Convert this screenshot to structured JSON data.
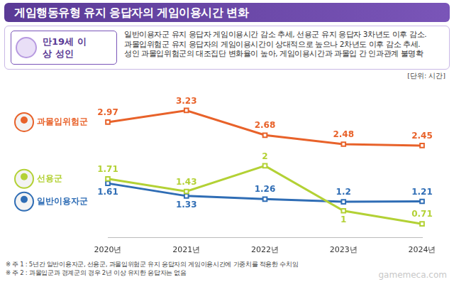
{
  "header": {
    "title": "게임행동유형 유지 응답자의 게임이용시간 변화"
  },
  "panel": {
    "label": "만19세 이상 성인",
    "lines": [
      "일반이용자군 유지 응답자 게임이용시간 감소 추세, 선용군 유지 응답자 3차년도 이후 감소.",
      "과몰입위험군 유지 응답자의 게임이용시간이 상대적으로 높으나 2차년도 이후 감소 추세.",
      "성인 과몰입위험군의 대조집단 변화율이 높아, 게임이용시간과 과몰입 간 인과관계 불명확"
    ]
  },
  "chart_data": {
    "type": "line",
    "unit": "[단위: 시간]",
    "categories": [
      "2020년",
      "2021년",
      "2022년",
      "2023년",
      "2024년"
    ],
    "series": [
      {
        "name": "과몰입위험군",
        "color": "#e8622a",
        "values": [
          2.97,
          3.23,
          2.68,
          2.48,
          2.45
        ]
      },
      {
        "name": "선용군",
        "color": "#b3d135",
        "values": [
          1.71,
          1.43,
          2.0,
          1.0,
          0.71
        ]
      },
      {
        "name": "일반이용자군",
        "color": "#2f6db5",
        "values": [
          1.61,
          1.33,
          1.26,
          1.2,
          1.21
        ]
      }
    ],
    "ylim": [
      0.4,
      3.6
    ],
    "grid": false,
    "data_labels": true,
    "tick_labels": "x",
    "legend": "left",
    "marker": "square"
  },
  "notes": [
    "※ 주 1 : 5년간 일반이용자군, 선용군, 과몰입위험군 유지 응답자의 게임이용시간에 가중치를 적용한 수치임",
    "※ 주 2 : 과몰입군과 경계군의 경우 2년 이상 유지한 응답자는 없음"
  ],
  "watermark": "gamemeca.com"
}
